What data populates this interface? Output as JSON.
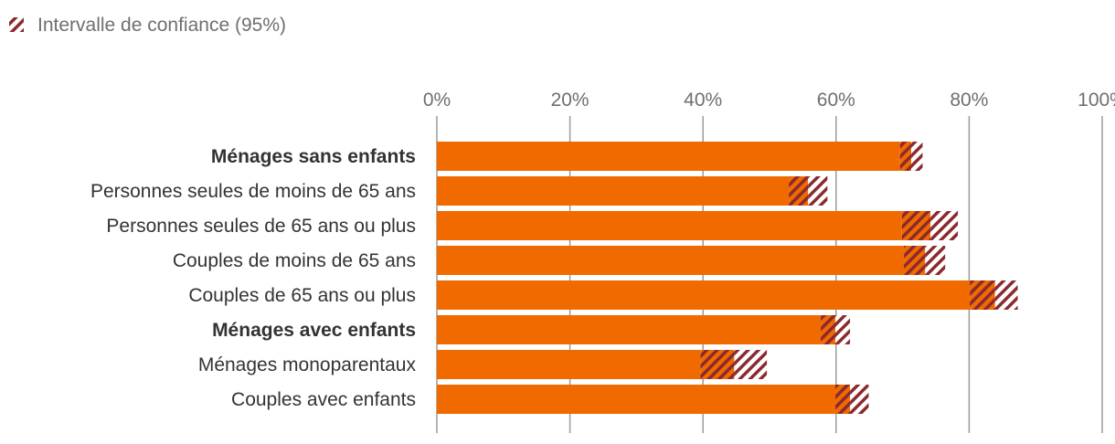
{
  "legend": {
    "label": "Intervalle de confiance (95%)",
    "icon": "hatched-swatch"
  },
  "colors": {
    "bar": "#f06a00",
    "ci_low_bg": "#f06a00",
    "ci_high_bg": "#ffffff",
    "ci_stripe": "#8b2a2e",
    "grid": "#9a9a9a",
    "tick_text": "#6f6f6f",
    "label_text": "#333333"
  },
  "chart_data": {
    "type": "bar",
    "orientation": "horizontal",
    "xlim": [
      0,
      100
    ],
    "x_ticks": [
      "0%",
      "20%",
      "40%",
      "60%",
      "80%",
      "100%"
    ],
    "x_tick_values": [
      0,
      20,
      40,
      60,
      80,
      100
    ],
    "grid": true,
    "legend_position": "top-left",
    "categories": [
      "Ménages sans enfants",
      "Personnes seules de moins de 65 ans",
      "Personnes seules de 65 ans ou plus",
      "Couples de moins de 65 ans",
      "Couples de 65 ans ou plus",
      "Ménages avec enfants",
      "Ménages monoparentaux",
      "Couples avec enfants"
    ],
    "bold_categories": [
      true,
      false,
      false,
      false,
      false,
      true,
      false,
      false
    ],
    "values": [
      71.3,
      55.8,
      74.2,
      73.4,
      83.9,
      59.9,
      44.7,
      62.1
    ],
    "ci_low": [
      69.6,
      52.9,
      69.9,
      70.2,
      80.1,
      57.7,
      39.6,
      59.9
    ],
    "ci_high": [
      73.0,
      58.7,
      78.3,
      76.4,
      87.3,
      62.1,
      49.6,
      64.9
    ]
  }
}
